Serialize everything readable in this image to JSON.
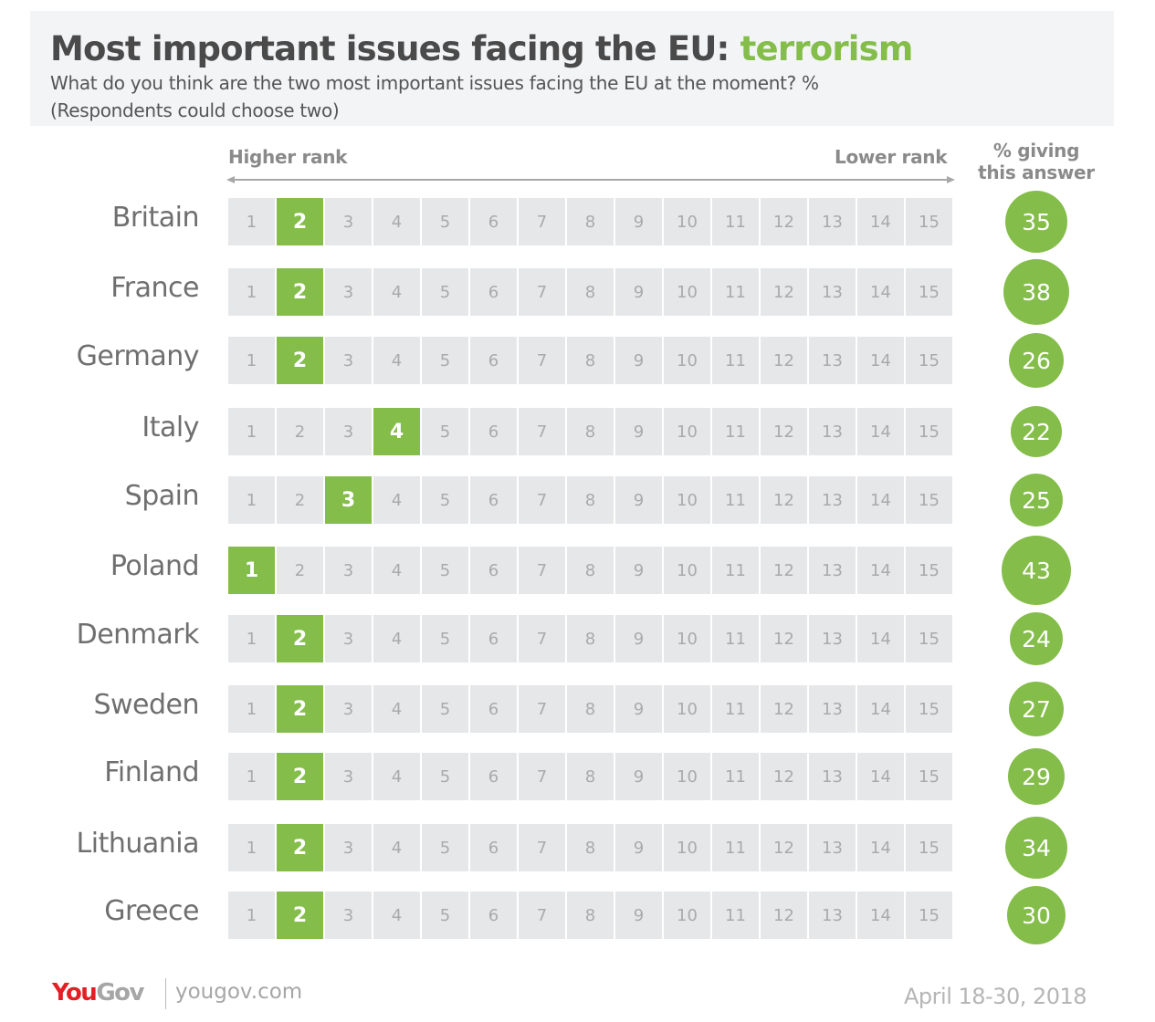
{
  "header": {
    "title_main": "Most important issues facing the EU: ",
    "title_topic": "terrorism",
    "subtitle_line1": "What do you think are the two most important issues facing the EU at the moment? %",
    "subtitle_line2": "(Respondents could choose two)"
  },
  "axis": {
    "higher_label": "Higher rank",
    "lower_label": "Lower rank",
    "pct_header_line1": "% giving",
    "pct_header_line2": "this answer"
  },
  "colors": {
    "accent": "#84bd4a",
    "cell_bg": "#e6e7e9",
    "brand_red": "#e31f26"
  },
  "footer": {
    "brand_you": "You",
    "brand_gov": "Gov",
    "url": "yougov.com",
    "date": "April 18-30, 2018"
  },
  "chart_data": {
    "type": "table",
    "title": "Most important issues facing the EU: terrorism",
    "subtitle": "What do you think are the two most important issues facing the EU at the moment? % (Respondents could choose two)",
    "rank_scale": [
      1,
      2,
      3,
      4,
      5,
      6,
      7,
      8,
      9,
      10,
      11,
      12,
      13,
      14,
      15
    ],
    "rank_axis_labels": [
      "Higher rank",
      "Lower rank"
    ],
    "value_label": "% giving this answer",
    "rows": [
      {
        "country": "Britain",
        "rank": 2,
        "percent": 35
      },
      {
        "country": "France",
        "rank": 2,
        "percent": 38
      },
      {
        "country": "Germany",
        "rank": 2,
        "percent": 26
      },
      {
        "country": "Italy",
        "rank": 4,
        "percent": 22
      },
      {
        "country": "Spain",
        "rank": 3,
        "percent": 25
      },
      {
        "country": "Poland",
        "rank": 1,
        "percent": 43
      },
      {
        "country": "Denmark",
        "rank": 2,
        "percent": 24
      },
      {
        "country": "Sweden",
        "rank": 2,
        "percent": 27
      },
      {
        "country": "Finland",
        "rank": 2,
        "percent": 29
      },
      {
        "country": "Lithuania",
        "rank": 2,
        "percent": 34
      },
      {
        "country": "Greece",
        "rank": 2,
        "percent": 30
      }
    ]
  }
}
